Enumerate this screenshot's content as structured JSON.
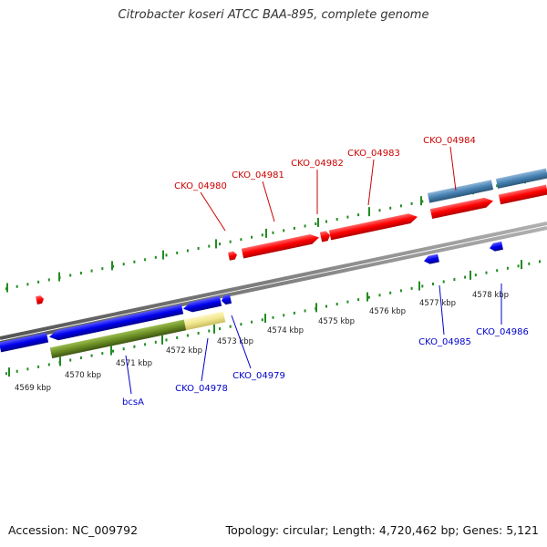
{
  "title": "Citrobacter koseri ATCC BAA-895, complete genome",
  "footer": {
    "accession": "Accession: NC_009792",
    "summary": "Topology: circular; Length: 4,720,462 bp; Genes: 5,121"
  },
  "colors": {
    "forward_gene": "#ff0000",
    "reverse_gene": "#0000ee",
    "forward_feature": "#4682b4",
    "reverse_feature_green": "#6b8e23",
    "reverse_feature_khaki": "#f0e68c",
    "backbone": "#808080",
    "ticks": "#228b22",
    "forward_label": "#cc0000",
    "reverse_label": "#0000cc"
  },
  "ruler": {
    "unit": "kbp",
    "ticks": [
      {
        "kbp": 4569,
        "label": "4569 kbp"
      },
      {
        "kbp": 4570,
        "label": "4570 kbp"
      },
      {
        "kbp": 4571,
        "label": "4571 kbp"
      },
      {
        "kbp": 4572,
        "label": "4572 kbp"
      },
      {
        "kbp": 4573,
        "label": "4573 kbp"
      },
      {
        "kbp": 4574,
        "label": "4574 kbp"
      },
      {
        "kbp": 4575,
        "label": "4575 kbp"
      },
      {
        "kbp": 4576,
        "label": "4576 kbp"
      },
      {
        "kbp": 4577,
        "label": "4577 kbp"
      },
      {
        "kbp": 4578,
        "label": "4578 kbp"
      }
    ]
  },
  "forward_genes": [
    {
      "name": "CKO_04980"
    },
    {
      "name": "CKO_04981"
    },
    {
      "name": "CKO_04982"
    },
    {
      "name": "CKO_04983"
    },
    {
      "name": "CKO_04984"
    }
  ],
  "reverse_genes": [
    {
      "name": "bcsA"
    },
    {
      "name": "CKO_04978"
    },
    {
      "name": "CKO_04979"
    },
    {
      "name": "CKO_04985"
    },
    {
      "name": "CKO_04986"
    }
  ]
}
